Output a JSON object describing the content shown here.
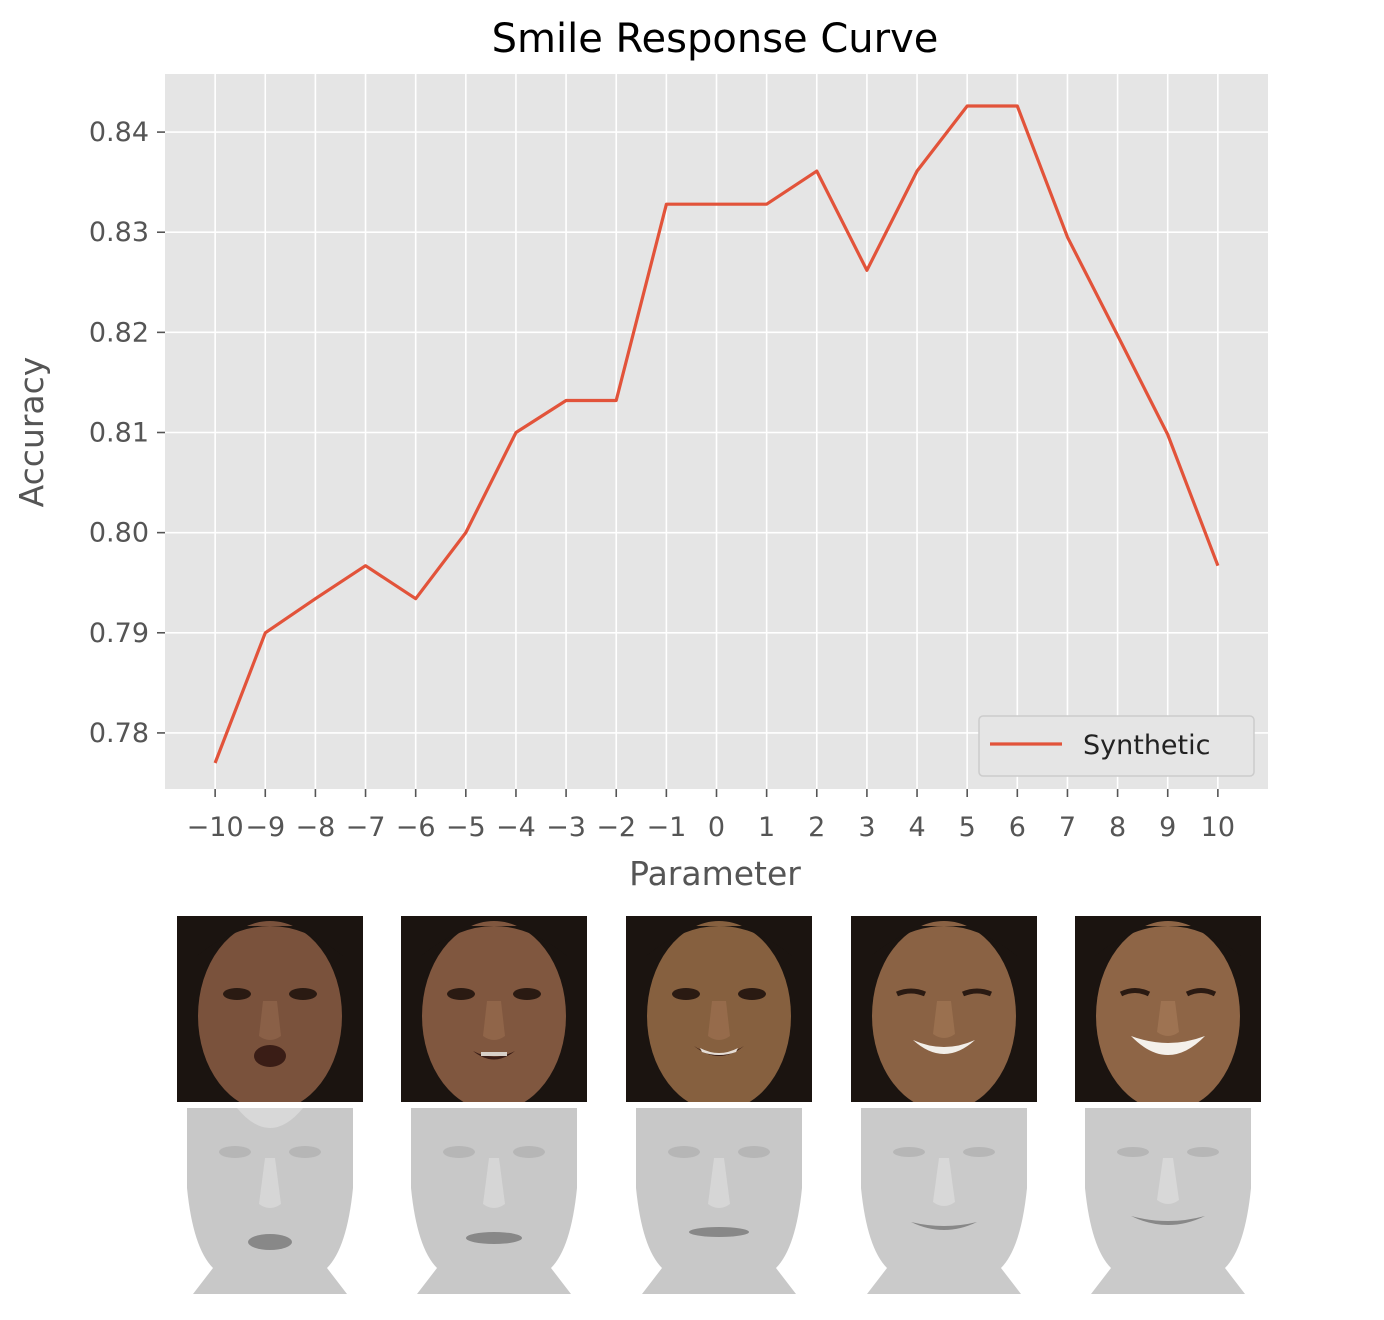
{
  "chart_data": {
    "type": "line",
    "title": "Smile Response Curve",
    "xlabel": "Parameter",
    "ylabel": "Accuracy",
    "x": [
      -10,
      -9,
      -8,
      -7,
      -6,
      -5,
      -4,
      -3,
      -2,
      -1,
      0,
      1,
      2,
      3,
      4,
      5,
      6,
      7,
      8,
      9,
      10
    ],
    "x_tick_labels": [
      "−10",
      "−9",
      "−8",
      "−7",
      "−6",
      "−5",
      "−4",
      "−3",
      "−2",
      "−1",
      "0",
      "1",
      "2",
      "3",
      "4",
      "5",
      "6",
      "7",
      "8",
      "9",
      "10"
    ],
    "series": [
      {
        "name": "Synthetic",
        "color": "#e2533a",
        "values": [
          0.777,
          0.79,
          0.7934,
          0.7967,
          0.7934,
          0.8,
          0.81,
          0.8132,
          0.8132,
          0.8328,
          0.8328,
          0.8328,
          0.8361,
          0.8262,
          0.8361,
          0.8426,
          0.8426,
          0.8295,
          0.8197,
          0.8098,
          0.7967
        ]
      }
    ],
    "yticks": [
      0.78,
      0.79,
      0.8,
      0.81,
      0.82,
      0.83,
      0.84
    ],
    "ytick_labels": [
      "0.78",
      "0.79",
      "0.80",
      "0.81",
      "0.82",
      "0.83",
      "0.84"
    ],
    "xlim": [
      -11.0,
      11.0
    ],
    "ylim": [
      0.7744,
      0.8458
    ],
    "grid": true,
    "legend": "lower-right",
    "style": {
      "plot_background": "#e5e5e5",
      "grid_color": "#ffffff"
    }
  },
  "image_strip": {
    "photos": [
      {
        "expression": "open-mouth"
      },
      {
        "expression": "talking"
      },
      {
        "expression": "slight-smile"
      },
      {
        "expression": "smile"
      },
      {
        "expression": "broad-smile"
      }
    ],
    "meshes": [
      {
        "expression": "open-mouth"
      },
      {
        "expression": "talking"
      },
      {
        "expression": "slight-smile"
      },
      {
        "expression": "smile"
      },
      {
        "expression": "broad-smile"
      }
    ]
  }
}
